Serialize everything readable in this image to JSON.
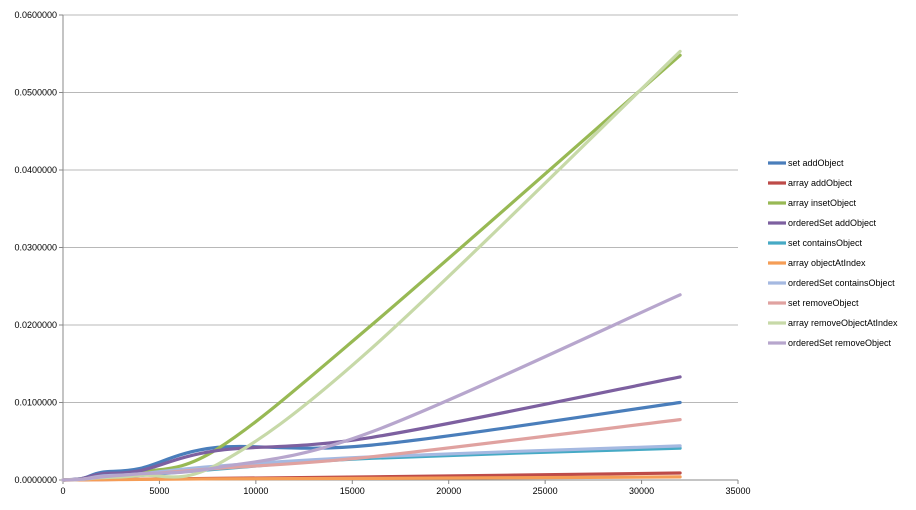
{
  "chart_data": {
    "type": "line",
    "title": "",
    "xlabel": "",
    "ylabel": "",
    "xlim": [
      0,
      35000
    ],
    "ylim": [
      0,
      0.06
    ],
    "x_ticks": [
      "0",
      "5000",
      "10000",
      "15000",
      "20000",
      "25000",
      "30000",
      "35000"
    ],
    "y_ticks": [
      "0.0000000",
      "0.0100000",
      "0.0200000",
      "0.0300000",
      "0.0400000",
      "0.0500000",
      "0.0600000"
    ],
    "x_tick_values": [
      0,
      5000,
      10000,
      15000,
      20000,
      25000,
      30000,
      35000
    ],
    "y_tick_values": [
      0,
      0.01,
      0.02,
      0.03,
      0.04,
      0.05,
      0.06
    ],
    "grid": "horizontal",
    "legend_position": "right",
    "x": [
      0,
      1000,
      2000,
      4000,
      8000,
      16000,
      32000
    ],
    "series": [
      {
        "name": "set addObject",
        "color": "#4a7ebb",
        "values": [
          0,
          0.0002,
          0.001,
          0.0015,
          0.0042,
          0.0045,
          0.01
        ]
      },
      {
        "name": "array addObject",
        "color": "#be4b48",
        "values": [
          0,
          2e-05,
          5e-05,
          0.0001,
          0.0002,
          0.0004,
          0.0009
        ]
      },
      {
        "name": "array insetObject",
        "color": "#98b954",
        "values": [
          0,
          0.0001,
          0.0005,
          0.001,
          0.004,
          0.02,
          0.0548
        ]
      },
      {
        "name": "orderedSet addObject",
        "color": "#7d60a0",
        "values": [
          0,
          0.0002,
          0.0008,
          0.0012,
          0.0038,
          0.0055,
          0.0133
        ]
      },
      {
        "name": "set containsObject",
        "color": "#46aac5",
        "values": [
          0,
          0.0001,
          0.0004,
          0.0006,
          0.0014,
          0.0028,
          0.0041
        ]
      },
      {
        "name": "array objectAtIndex",
        "color": "#f59d56",
        "values": [
          0,
          2e-05,
          4e-05,
          8e-05,
          0.00015,
          0.0002,
          0.0004
        ]
      },
      {
        "name": "orderedSet containsObject",
        "color": "#a5b9e1",
        "values": [
          0,
          0.0001,
          0.0005,
          0.0008,
          0.0018,
          0.003,
          0.0044
        ]
      },
      {
        "name": "set removeObject",
        "color": "#e0a2a0",
        "values": [
          0,
          0.0001,
          0.0004,
          0.0007,
          0.0015,
          0.003,
          0.0078
        ]
      },
      {
        "name": "array removeObjectAtIndex",
        "color": "#c7d9a8",
        "values": [
          0,
          0.0001,
          0.0003,
          0.0006,
          0.002,
          0.017,
          0.0553
        ]
      },
      {
        "name": "orderedSet removeObject",
        "color": "#b7a6cd",
        "values": [
          0,
          0.0001,
          0.0004,
          0.0008,
          0.0016,
          0.0062,
          0.0239
        ]
      }
    ]
  }
}
